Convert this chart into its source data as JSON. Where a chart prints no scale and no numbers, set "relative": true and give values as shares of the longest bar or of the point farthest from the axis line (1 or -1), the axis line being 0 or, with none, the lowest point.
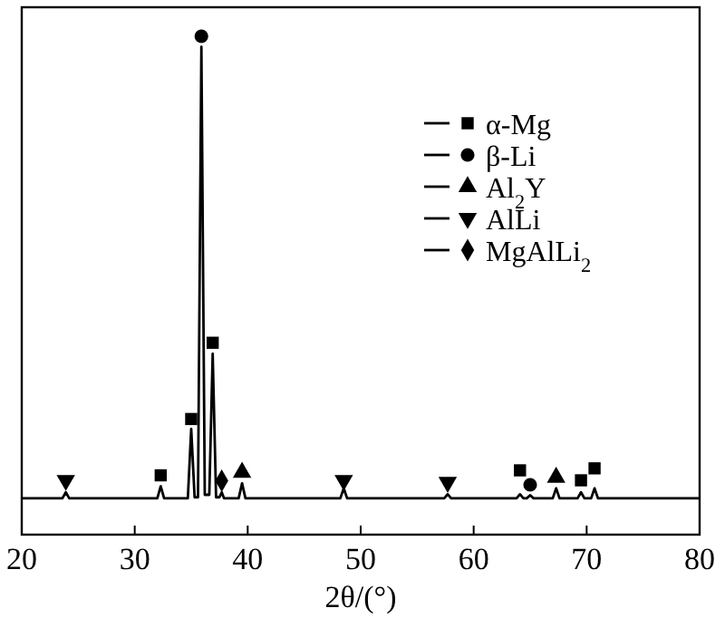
{
  "chart_data": {
    "type": "line",
    "relative": true,
    "xlabel": "2θ/(°)",
    "xlim": [
      20,
      80
    ],
    "xticks": [
      20,
      30,
      40,
      50,
      60,
      70,
      80
    ],
    "grid": false,
    "legend": "top right",
    "tick_labels": "x",
    "series": [
      {
        "type": "line",
        "color": "#000000",
        "marker": "none",
        "line_style": "solid",
        "x": [
          20,
          23.6,
          23.9,
          24.2,
          32.0,
          32.3,
          32.6,
          34.7,
          35.0,
          35.3,
          35.6,
          35.9,
          36.2,
          36.6,
          36.9,
          37.2,
          37.5,
          37.7,
          37.9,
          39.2,
          39.5,
          39.8,
          48.2,
          48.5,
          48.8,
          57.4,
          57.7,
          58.0,
          63.8,
          64.1,
          64.4,
          64.7,
          65.0,
          65.3,
          67.0,
          67.3,
          67.6,
          69.2,
          69.5,
          69.8,
          70.4,
          70.7,
          71.0,
          80
        ],
        "values": [
          0.073,
          0.073,
          0.085,
          0.073,
          0.073,
          0.097,
          0.073,
          0.073,
          0.212,
          0.075,
          0.075,
          0.979,
          0.08,
          0.08,
          0.363,
          0.075,
          0.075,
          0.085,
          0.073,
          0.073,
          0.103,
          0.073,
          0.073,
          0.093,
          0.073,
          0.073,
          0.081,
          0.073,
          0.073,
          0.081,
          0.073,
          0.073,
          0.079,
          0.073,
          0.073,
          0.093,
          0.073,
          0.073,
          0.085,
          0.073,
          0.073,
          0.093,
          0.073,
          0.073
        ]
      },
      {
        "type": "scatter",
        "name": "α-Mg",
        "color": "#000000",
        "marker": "square",
        "x": [
          32.3,
          35.0,
          36.9,
          64.1,
          69.5,
          70.7
        ],
        "values": [
          0.119,
          0.232,
          0.385,
          0.129,
          0.109,
          0.133
        ]
      },
      {
        "type": "scatter",
        "name": "β-Li",
        "color": "#000000",
        "marker": "circle",
        "x": [
          35.9,
          65.0
        ],
        "values": [
          1,
          0.1
        ]
      },
      {
        "type": "scatter",
        "name": "Al$_{2}$Y",
        "color": "#000000",
        "marker": "triangle",
        "x": [
          39.5,
          67.3
        ],
        "values": [
          0.125,
          0.115
        ]
      },
      {
        "type": "scatter",
        "name": "AlLi",
        "color": "#000000",
        "marker": "triangle-down",
        "x": [
          23.9,
          48.5,
          57.7
        ],
        "values": [
          0.109,
          0.109,
          0.105
        ]
      },
      {
        "type": "scatter",
        "name": "MgAlLi$_{2}$",
        "color": "#000000",
        "marker": "diamond",
        "x": [
          37.7
        ],
        "values": [
          0.108
        ]
      }
    ]
  }
}
